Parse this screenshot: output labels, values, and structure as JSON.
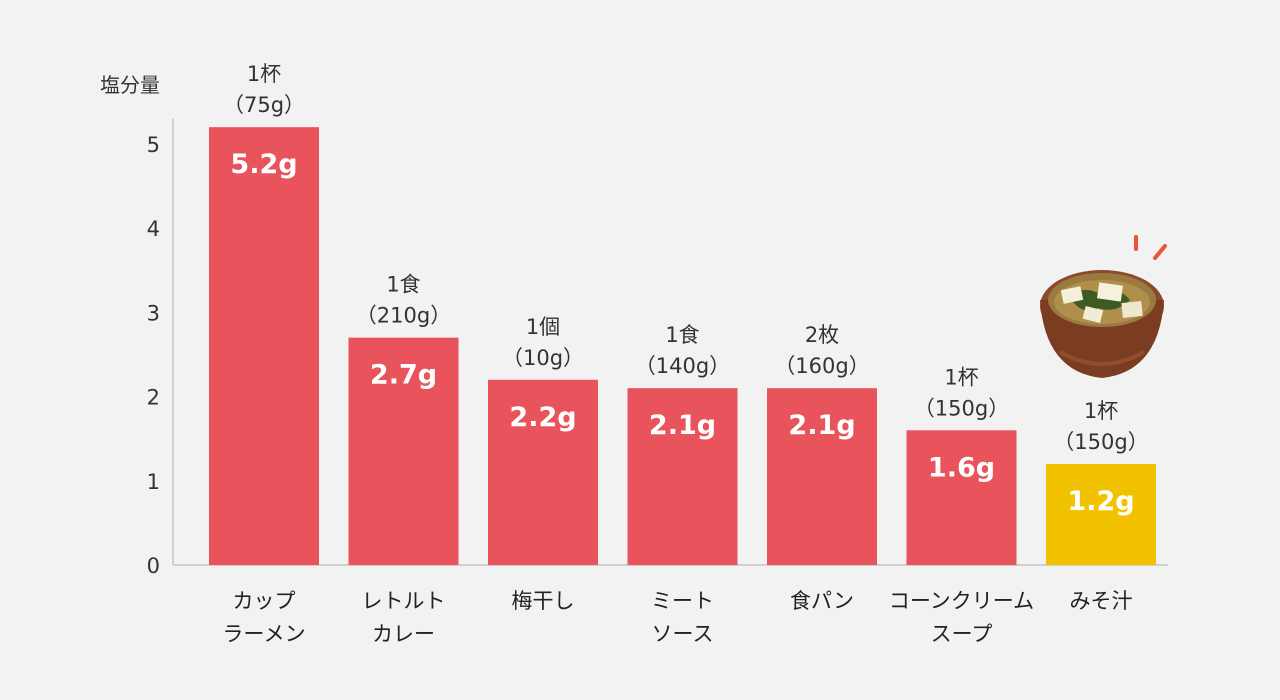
{
  "colors": {
    "bar": "#e8535c",
    "highlight": "#f2c200",
    "axis": "#cfcfcf",
    "background": "#f2f2f2"
  },
  "icons": {
    "highlight_image": "miso-soup-bowl-icon"
  },
  "chart_data": {
    "type": "bar",
    "ylabel": "塩分量",
    "ylim": [
      0,
      5.3
    ],
    "yticks": [
      "0",
      "1",
      "2",
      "3",
      "4",
      "5"
    ],
    "grid": false,
    "bars": [
      {
        "category": [
          "カップ",
          "ラーメン"
        ],
        "portion": [
          "1杯",
          "（75g）"
        ],
        "value": 5.2,
        "label": "5.2g",
        "highlight": false
      },
      {
        "category": [
          "レトルト",
          "カレー"
        ],
        "portion": [
          "1食",
          "（210g）"
        ],
        "value": 2.7,
        "label": "2.7g",
        "highlight": false
      },
      {
        "category": [
          "梅干し"
        ],
        "portion": [
          "1個",
          "（10g）"
        ],
        "value": 2.2,
        "label": "2.2g",
        "highlight": false
      },
      {
        "category": [
          "ミート",
          "ソース"
        ],
        "portion": [
          "1食",
          "（140g）"
        ],
        "value": 2.1,
        "label": "2.1g",
        "highlight": false
      },
      {
        "category": [
          "食パン"
        ],
        "portion": [
          "2枚",
          "（160g）"
        ],
        "value": 2.1,
        "label": "2.1g",
        "highlight": false
      },
      {
        "category": [
          "コーンクリーム",
          "スープ"
        ],
        "portion": [
          "1杯",
          "（150g）"
        ],
        "value": 1.6,
        "label": "1.6g",
        "highlight": false
      },
      {
        "category": [
          "みそ汁"
        ],
        "portion": [
          "1杯",
          "（150g）"
        ],
        "value": 1.2,
        "label": "1.2g",
        "highlight": true
      }
    ]
  }
}
